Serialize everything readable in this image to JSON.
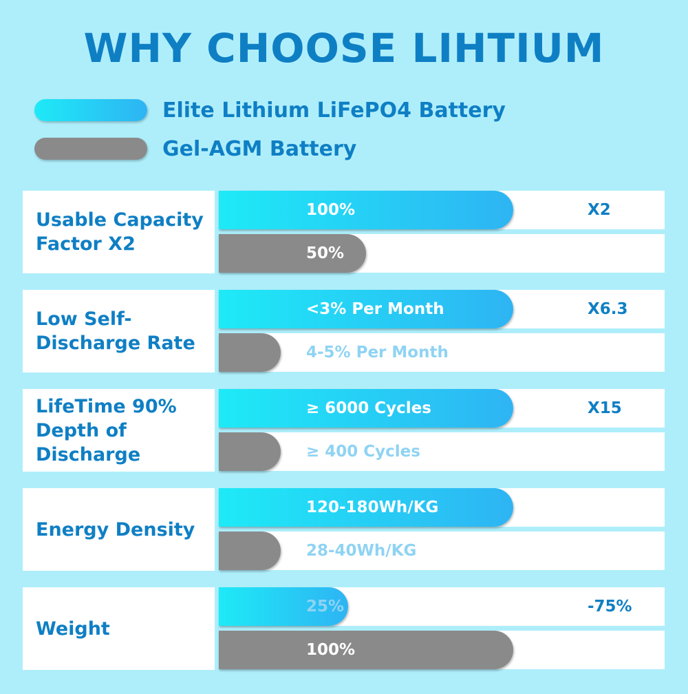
{
  "title": "WHY CHOOSE LIHTIUM",
  "colors": {
    "lithium": "#22d4f5",
    "agm": "#8a8a8a",
    "text": "#0f7fc4",
    "background": "#aeeefb"
  },
  "legend": [
    {
      "label": "Elite Lithium LiFePO4 Battery",
      "color": "cyan"
    },
    {
      "label": "Gel-AGM Battery",
      "color": "gray"
    }
  ],
  "chart_data": {
    "type": "bar",
    "orientation": "horizontal",
    "series_names": [
      "Elite Lithium LiFePO4 Battery",
      "Gel-AGM Battery"
    ],
    "rows": [
      {
        "label": "Usable Capacity Factor X2",
        "lithium": {
          "text": "100%",
          "length": 1.0
        },
        "agm": {
          "text": "50%",
          "length": 0.5
        },
        "factor": "X2"
      },
      {
        "label": "Low Self-Discharge Rate",
        "lithium": {
          "text": "<3% Per Month",
          "length": 1.0
        },
        "agm": {
          "text": "4-5% Per Month",
          "length": 0.21
        },
        "factor": "X6.3"
      },
      {
        "label": "LifeTime 90% Depth of Discharge",
        "lithium": {
          "text": "≥ 6000 Cycles",
          "length": 1.0
        },
        "agm": {
          "text": "≥ 400 Cycles",
          "length": 0.21
        },
        "factor": "X15"
      },
      {
        "label": "Energy Density",
        "lithium": {
          "text": "120-180Wh/KG",
          "length": 1.0
        },
        "agm": {
          "text": "28-40Wh/KG",
          "length": 0.21
        },
        "factor": ""
      },
      {
        "label": "Weight",
        "lithium": {
          "text": "25%",
          "length": 0.44
        },
        "agm": {
          "text": "100%",
          "length": 1.0
        },
        "factor": "-75%"
      }
    ]
  }
}
